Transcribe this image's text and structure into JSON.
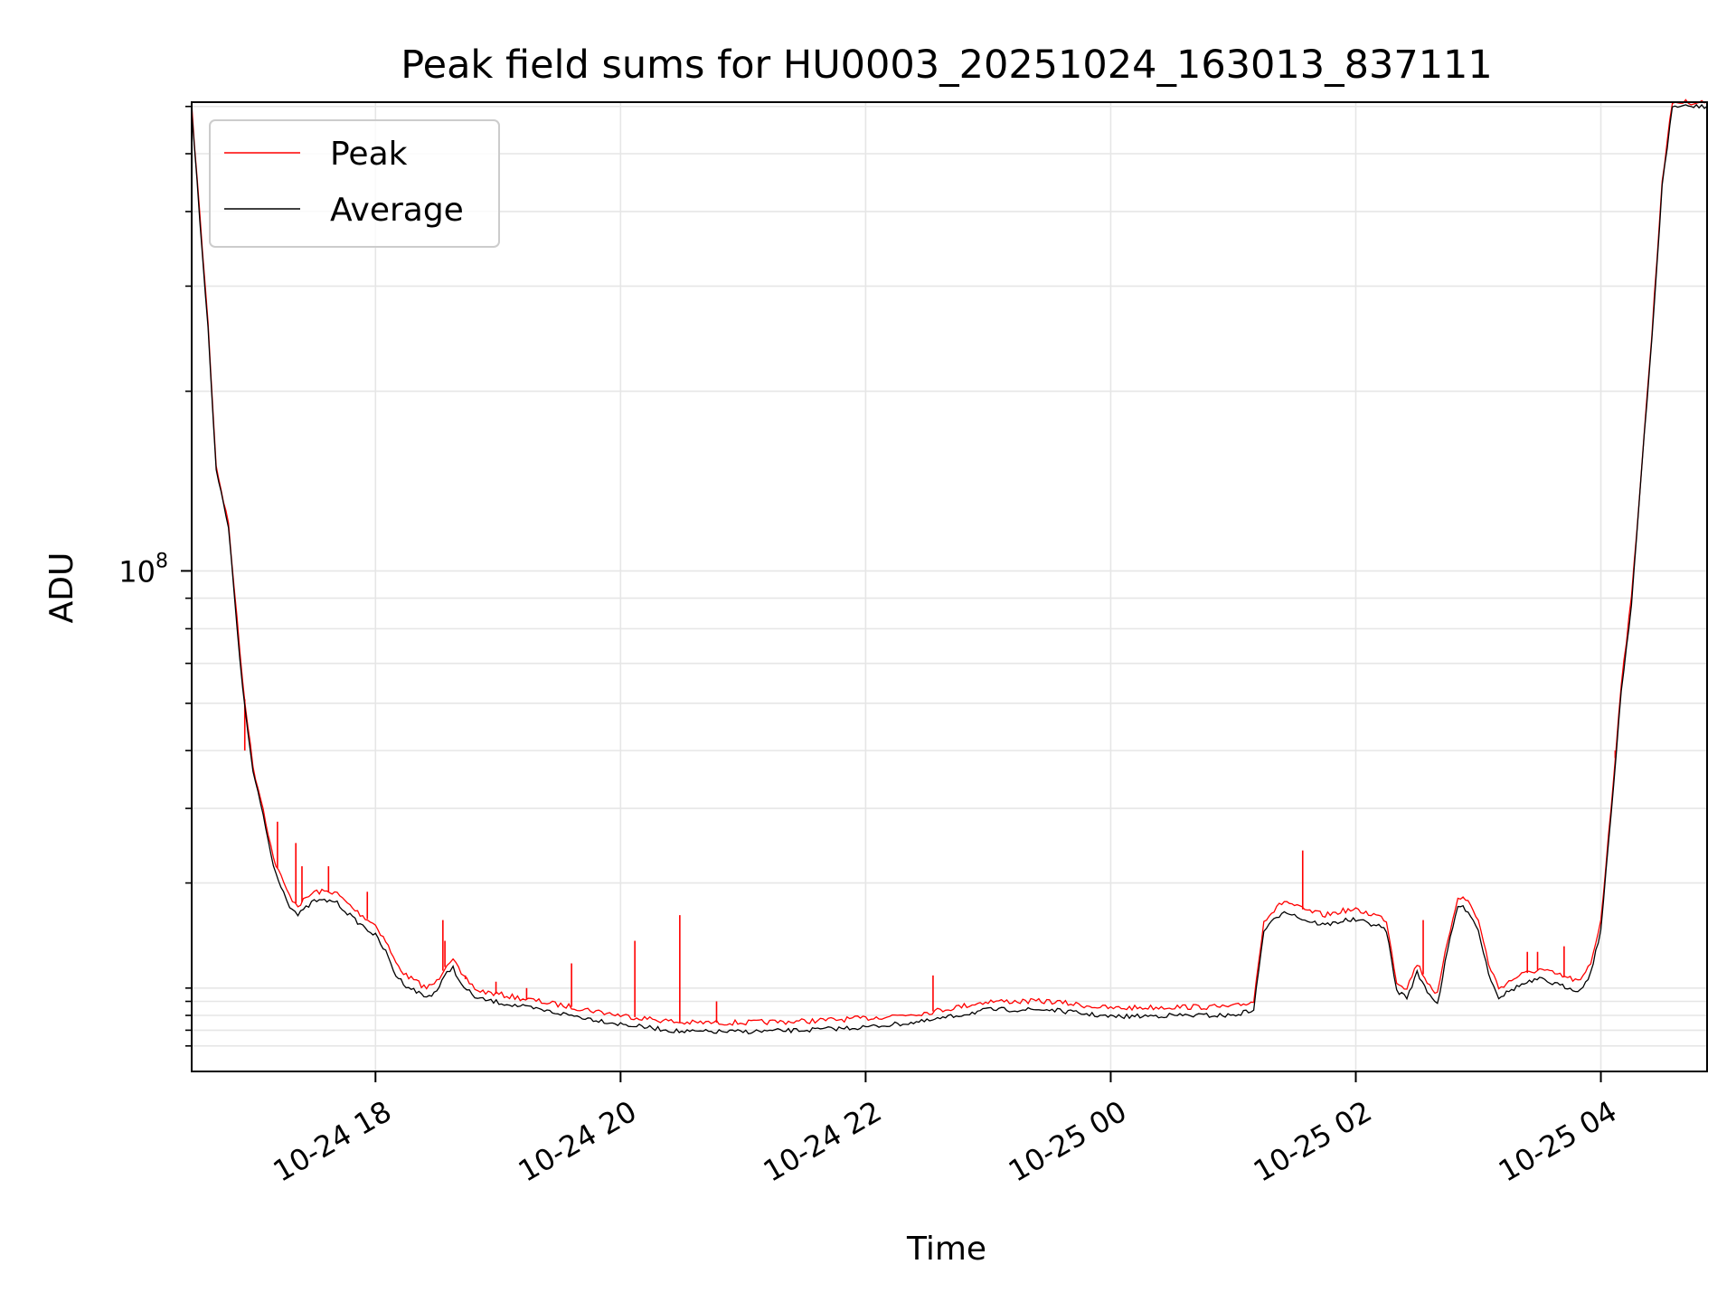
{
  "chart_data": {
    "type": "line",
    "title": "Peak field sums for HU0003_20251024_163013_837111",
    "xlabel": "Time",
    "ylabel": "ADU",
    "y_scale": "log",
    "xlim": [
      "2025-10-24 16:30",
      "2025-10-25 04:52"
    ],
    "ylim": [
      14500000.0,
      610000000.0
    ],
    "grid": true,
    "legend_position": "upper-left",
    "x_tick_labels": [
      "10-24 18",
      "10-24 20",
      "10-24 22",
      "10-25 00",
      "10-25 02",
      "10-25 04"
    ],
    "x_ticks": [
      "2025-10-24 18:00",
      "2025-10-24 20:00",
      "2025-10-24 22:00",
      "2025-10-25 00:00",
      "2025-10-25 02:00",
      "2025-10-25 04:00"
    ],
    "y_major_ticks": [
      {
        "value": 100000000.0,
        "base": "10",
        "exponent": "8"
      }
    ],
    "y_minor_ticks": [
      16000000.0,
      17000000.0,
      18000000.0,
      19000000.0,
      20000000.0,
      30000000.0,
      40000000.0,
      50000000.0,
      60000000.0,
      70000000.0,
      80000000.0,
      90000000.0,
      200000000.0,
      300000000.0,
      400000000.0,
      500000000.0,
      600000000.0
    ],
    "series": [
      {
        "name": "Peak",
        "color": "#ff0000",
        "points": [
          [
            "2025-10-24 16:30",
            600000000.0
          ],
          [
            "2025-10-24 16:38",
            260000000.0
          ],
          [
            "2025-10-24 16:42",
            150000000.0
          ],
          [
            "2025-10-24 16:48",
            120000000.0
          ],
          [
            "2025-10-24 16:55",
            65000000.0
          ],
          [
            "2025-10-24 17:00",
            47000000.0
          ],
          [
            "2025-10-24 17:05",
            40000000.0
          ],
          [
            "2025-10-24 17:10",
            33000000.0
          ],
          [
            "2025-10-24 17:15",
            30000000.0
          ],
          [
            "2025-10-24 17:18",
            28500000.0
          ],
          [
            "2025-10-24 17:22",
            27500000.0
          ],
          [
            "2025-10-24 17:30",
            29000000.0
          ],
          [
            "2025-10-24 17:40",
            29000000.0
          ],
          [
            "2025-10-24 17:50",
            27000000.0
          ],
          [
            "2025-10-24 18:00",
            25500000.0
          ],
          [
            "2025-10-24 18:05",
            24000000.0
          ],
          [
            "2025-10-24 18:10",
            22000000.0
          ],
          [
            "2025-10-24 18:15",
            21000000.0
          ],
          [
            "2025-10-24 18:25",
            20000000.0
          ],
          [
            "2025-10-24 18:30",
            20500000.0
          ],
          [
            "2025-10-24 18:35",
            22000000.0
          ],
          [
            "2025-10-24 18:38",
            22500000.0
          ],
          [
            "2025-10-24 18:42",
            21000000.0
          ],
          [
            "2025-10-24 18:50",
            19800000.0
          ],
          [
            "2025-10-24 19:20",
            19000000.0
          ],
          [
            "2025-10-24 19:40",
            18500000.0
          ],
          [
            "2025-10-24 20:00",
            18000000.0
          ],
          [
            "2025-10-24 20:30",
            17500000.0
          ],
          [
            "2025-10-24 21:00",
            17500000.0
          ],
          [
            "2025-10-24 21:30",
            17600000.0
          ],
          [
            "2025-10-24 22:00",
            17800000.0
          ],
          [
            "2025-10-24 22:30",
            18200000.0
          ],
          [
            "2025-10-24 23:00",
            19000000.0
          ],
          [
            "2025-10-24 23:30",
            19000000.0
          ],
          [
            "2025-10-25 00:00",
            18500000.0
          ],
          [
            "2025-10-25 00:30",
            18600000.0
          ],
          [
            "2025-10-25 01:00",
            18600000.0
          ],
          [
            "2025-10-25 01:10",
            19000000.0
          ],
          [
            "2025-10-25 01:15",
            26000000.0
          ],
          [
            "2025-10-25 01:25",
            28000000.0
          ],
          [
            "2025-10-25 01:35",
            27000000.0
          ],
          [
            "2025-10-25 01:45",
            26500000.0
          ],
          [
            "2025-10-25 01:55",
            27000000.0
          ],
          [
            "2025-10-25 02:00",
            27000000.0
          ],
          [
            "2025-10-25 02:10",
            26500000.0
          ],
          [
            "2025-10-25 02:15",
            26000000.0
          ],
          [
            "2025-10-25 02:20",
            20500000.0
          ],
          [
            "2025-10-25 02:25",
            20000000.0
          ],
          [
            "2025-10-25 02:30",
            22000000.0
          ],
          [
            "2025-10-25 02:35",
            20500000.0
          ],
          [
            "2025-10-25 02:40",
            19500000.0
          ],
          [
            "2025-10-25 02:45",
            24000000.0
          ],
          [
            "2025-10-25 02:50",
            28500000.0
          ],
          [
            "2025-10-25 02:55",
            28000000.0
          ],
          [
            "2025-10-25 03:00",
            26000000.0
          ],
          [
            "2025-10-25 03:05",
            22000000.0
          ],
          [
            "2025-10-25 03:10",
            20000000.0
          ],
          [
            "2025-10-25 03:20",
            21000000.0
          ],
          [
            "2025-10-25 03:30",
            21500000.0
          ],
          [
            "2025-10-25 03:40",
            21000000.0
          ],
          [
            "2025-10-25 03:50",
            20500000.0
          ],
          [
            "2025-10-25 03:55",
            22000000.0
          ],
          [
            "2025-10-25 04:00",
            26000000.0
          ],
          [
            "2025-10-25 04:05",
            40000000.0
          ],
          [
            "2025-10-25 04:10",
            65000000.0
          ],
          [
            "2025-10-25 04:15",
            90000000.0
          ],
          [
            "2025-10-25 04:20",
            150000000.0
          ],
          [
            "2025-10-25 04:25",
            250000000.0
          ],
          [
            "2025-10-25 04:30",
            450000000.0
          ],
          [
            "2025-10-25 04:35",
            610000000.0
          ],
          [
            "2025-10-25 04:52",
            610000000.0
          ]
        ],
        "spikes": [
          [
            "2025-10-24 16:56",
            50000000.0
          ],
          [
            "2025-10-24 17:12",
            38000000.0
          ],
          [
            "2025-10-24 17:21",
            35000000.0
          ],
          [
            "2025-10-24 17:24",
            32000000.0
          ],
          [
            "2025-10-24 17:37",
            32000000.0
          ],
          [
            "2025-10-24 17:56",
            29000000.0
          ],
          [
            "2025-10-24 18:33",
            26000000.0
          ],
          [
            "2025-10-24 18:34",
            24000000.0
          ],
          [
            "2025-10-24 18:44",
            21000000.0
          ],
          [
            "2025-10-24 18:59",
            20500000.0
          ],
          [
            "2025-10-24 19:14",
            20000000.0
          ],
          [
            "2025-10-24 19:36",
            22000000.0
          ],
          [
            "2025-10-24 20:07",
            24000000.0
          ],
          [
            "2025-10-24 20:29",
            26500000.0
          ],
          [
            "2025-10-24 20:47",
            19000000.0
          ],
          [
            "2025-10-24 22:33",
            21000000.0
          ],
          [
            "2025-10-25 01:34",
            34000000.0
          ],
          [
            "2025-10-25 02:33",
            26000000.0
          ],
          [
            "2025-10-25 03:24",
            23000000.0
          ],
          [
            "2025-10-25 03:29",
            23000000.0
          ],
          [
            "2025-10-25 03:42",
            23500000.0
          ],
          [
            "2025-10-25 04:07",
            50000000.0
          ]
        ]
      },
      {
        "name": "Average",
        "color": "#000000",
        "points": [
          [
            "2025-10-24 16:30",
            590000000.0
          ],
          [
            "2025-10-24 16:38",
            255000000.0
          ],
          [
            "2025-10-24 16:42",
            148000000.0
          ],
          [
            "2025-10-24 16:48",
            118000000.0
          ],
          [
            "2025-10-24 16:55",
            63000000.0
          ],
          [
            "2025-10-24 17:00",
            46000000.0
          ],
          [
            "2025-10-24 17:05",
            39000000.0
          ],
          [
            "2025-10-24 17:10",
            32000000.0
          ],
          [
            "2025-10-24 17:15",
            29000000.0
          ],
          [
            "2025-10-24 17:18",
            27500000.0
          ],
          [
            "2025-10-24 17:22",
            26500000.0
          ],
          [
            "2025-10-24 17:30",
            28000000.0
          ],
          [
            "2025-10-24 17:40",
            28000000.0
          ],
          [
            "2025-10-24 17:50",
            26000000.0
          ],
          [
            "2025-10-24 18:00",
            24500000.0
          ],
          [
            "2025-10-24 18:05",
            23000000.0
          ],
          [
            "2025-10-24 18:10",
            21000000.0
          ],
          [
            "2025-10-24 18:15",
            20200000.0
          ],
          [
            "2025-10-24 18:25",
            19300000.0
          ],
          [
            "2025-10-24 18:30",
            19800000.0
          ],
          [
            "2025-10-24 18:35",
            21200000.0
          ],
          [
            "2025-10-24 18:38",
            21700000.0
          ],
          [
            "2025-10-24 18:42",
            20200000.0
          ],
          [
            "2025-10-24 18:50",
            19200000.0
          ],
          [
            "2025-10-24 19:20",
            18400000.0
          ],
          [
            "2025-10-24 19:40",
            17900000.0
          ],
          [
            "2025-10-24 20:00",
            17400000.0
          ],
          [
            "2025-10-24 20:30",
            16900000.0
          ],
          [
            "2025-10-24 21:00",
            16900000.0
          ],
          [
            "2025-10-24 21:30",
            17000000.0
          ],
          [
            "2025-10-24 22:00",
            17200000.0
          ],
          [
            "2025-10-24 22:30",
            17600000.0
          ],
          [
            "2025-10-24 23:00",
            18400000.0
          ],
          [
            "2025-10-24 23:30",
            18400000.0
          ],
          [
            "2025-10-25 00:00",
            17900000.0
          ],
          [
            "2025-10-25 00:30",
            18000000.0
          ],
          [
            "2025-10-25 01:00",
            18000000.0
          ],
          [
            "2025-10-25 01:10",
            18400000.0
          ],
          [
            "2025-10-25 01:15",
            25000000.0
          ],
          [
            "2025-10-25 01:25",
            27000000.0
          ],
          [
            "2025-10-25 01:35",
            26000000.0
          ],
          [
            "2025-10-25 01:45",
            25500000.0
          ],
          [
            "2025-10-25 01:55",
            26000000.0
          ],
          [
            "2025-10-25 02:00",
            26000000.0
          ],
          [
            "2025-10-25 02:10",
            25500000.0
          ],
          [
            "2025-10-25 02:15",
            25000000.0
          ],
          [
            "2025-10-25 02:20",
            19800000.0
          ],
          [
            "2025-10-25 02:25",
            19300000.0
          ],
          [
            "2025-10-25 02:30",
            21200000.0
          ],
          [
            "2025-10-25 02:35",
            19800000.0
          ],
          [
            "2025-10-25 02:40",
            18800000.0
          ],
          [
            "2025-10-25 02:45",
            23200000.0
          ],
          [
            "2025-10-25 02:50",
            27500000.0
          ],
          [
            "2025-10-25 02:55",
            27000000.0
          ],
          [
            "2025-10-25 03:00",
            25000000.0
          ],
          [
            "2025-10-25 03:05",
            21200000.0
          ],
          [
            "2025-10-25 03:10",
            19300000.0
          ],
          [
            "2025-10-25 03:20",
            20200000.0
          ],
          [
            "2025-10-25 03:30",
            20700000.0
          ],
          [
            "2025-10-25 03:40",
            20200000.0
          ],
          [
            "2025-10-25 03:50",
            19800000.0
          ],
          [
            "2025-10-25 03:55",
            21200000.0
          ],
          [
            "2025-10-25 04:00",
            25000000.0
          ],
          [
            "2025-10-25 04:05",
            39000000.0
          ],
          [
            "2025-10-25 04:10",
            63000000.0
          ],
          [
            "2025-10-25 04:15",
            88000000.0
          ],
          [
            "2025-10-25 04:20",
            148000000.0
          ],
          [
            "2025-10-25 04:25",
            245000000.0
          ],
          [
            "2025-10-25 04:30",
            440000000.0
          ],
          [
            "2025-10-25 04:35",
            600000000.0
          ],
          [
            "2025-10-25 04:52",
            600000000.0
          ]
        ]
      }
    ]
  }
}
